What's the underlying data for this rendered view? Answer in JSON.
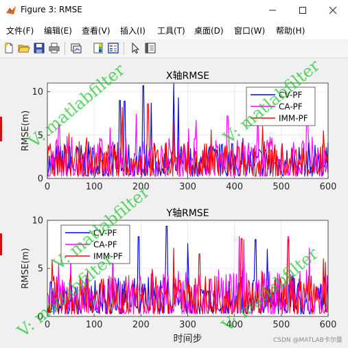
{
  "window": {
    "title": "Figure 3: RMSE",
    "icon": "matlab-figure-icon",
    "controls": [
      "minimize-icon",
      "maximize-icon",
      "close-icon"
    ]
  },
  "menu": [
    "文件(F)",
    "编辑(E)",
    "查看(V)",
    "插入(I)",
    "工具(T)",
    "桌面(D)",
    "窗口(W)",
    "帮助(H)"
  ],
  "toolbar": [
    "new-figure-icon",
    "open-file-icon",
    "save-icon",
    "print-icon",
    "link-plot-icon",
    "insert-colorbar-icon",
    "insert-legend-icon",
    "edit-plot-icon",
    "property-inspector-icon"
  ],
  "watermark": "V: matlabfilter",
  "footer": "CSDN @MATLAB卡尔曼",
  "colors": {
    "CV-PF": "#0000ff",
    "CA-PF": "#ff00ff",
    "IMM-PF": "#ff0000",
    "watermark": "#18c828"
  },
  "chart_data": [
    {
      "type": "line",
      "title": "X轴RMSE",
      "xlabel": "",
      "ylabel": "RMSE(m)",
      "xlim": [
        0,
        600
      ],
      "ylim": [
        0,
        11
      ],
      "xticks": [
        0,
        100,
        200,
        300,
        400,
        500,
        600
      ],
      "yticks": [
        0,
        5,
        10
      ],
      "grid": true,
      "legend_position": "top-right",
      "series": [
        {
          "name": "CV-PF",
          "peaks": [
            [
              155,
              9.0
            ],
            [
              165,
              8.9
            ],
            [
              205,
              10.7
            ],
            [
              222,
              8.7
            ],
            [
              270,
              11.0
            ],
            [
              280,
              9.3
            ]
          ]
        },
        {
          "name": "CA-PF",
          "peaks": [
            [
              25,
              6.2
            ],
            [
              190,
              7.4
            ],
            [
              318,
              6.7
            ],
            [
              385,
              7.2
            ],
            [
              450,
              7.5
            ],
            [
              555,
              7.0
            ]
          ]
        },
        {
          "name": "IMM-PF",
          "peaks": [
            [
              160,
              8.2
            ],
            [
              215,
              8.6
            ],
            [
              270,
              6.8
            ],
            [
              350,
              5.6
            ],
            [
              460,
              6.0
            ],
            [
              590,
              5.5
            ]
          ]
        }
      ]
    },
    {
      "type": "line",
      "title": "Y轴RMSE",
      "xlabel": "时间步",
      "ylabel": "RMSE(m)",
      "xlim": [
        0,
        600
      ],
      "ylim": [
        0,
        10
      ],
      "xticks": [
        0,
        100,
        200,
        300,
        400,
        500,
        600
      ],
      "yticks": [
        0,
        5,
        10
      ],
      "grid": true,
      "legend_position": "top-left",
      "series": [
        {
          "name": "CV-PF",
          "peaks": [
            [
              195,
              8.3
            ],
            [
              255,
              9.4
            ],
            [
              300,
              7.6
            ],
            [
              445,
              8.0
            ],
            [
              470,
              7.0
            ]
          ]
        },
        {
          "name": "CA-PF",
          "peaks": [
            [
              50,
              6.5
            ],
            [
              140,
              7.3
            ],
            [
              410,
              8.3
            ],
            [
              420,
              8.0
            ],
            [
              515,
              8.3
            ],
            [
              560,
              7.1
            ]
          ]
        },
        {
          "name": "IMM-PF",
          "peaks": [
            [
              10,
              5.9
            ],
            [
              270,
              7.1
            ],
            [
              325,
              6.5
            ],
            [
              415,
              8.1
            ],
            [
              515,
              8.0
            ],
            [
              590,
              6.0
            ]
          ]
        }
      ]
    }
  ]
}
